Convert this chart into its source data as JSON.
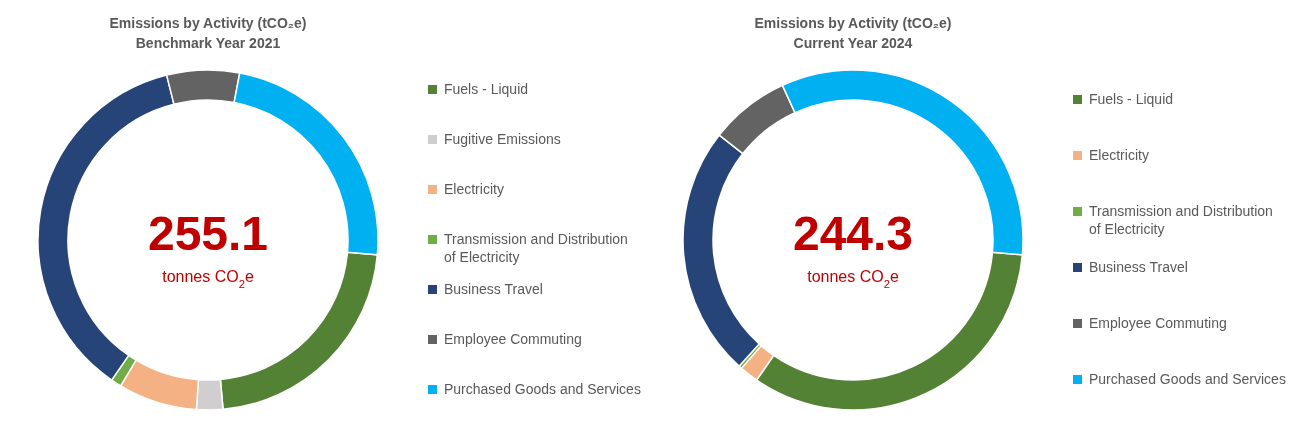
{
  "chart_data": [
    {
      "type": "donut",
      "title": "Emissions by Activity (tCO₂e)",
      "subtitle": "Benchmark Year 2021",
      "categories": [
        "Fuels - Liquid",
        "Fugitive Emissions",
        "Electricity",
        "Transmission and Distribution of Electricity",
        "Business Travel",
        "Employee Commuting",
        "Purchased Goods and Services"
      ],
      "values": [
        22.2,
        2.5,
        7.5,
        1,
        36.5,
        6.9,
        23.4
      ],
      "colors": [
        "#548235",
        "#d0cece",
        "#f4b183",
        "#70ad47",
        "#264478",
        "#636363",
        "#00b0f0"
      ],
      "annotations": [
        "255.1",
        "tonnes CO$_{2}$e"
      ],
      "legend": "right"
    },
    {
      "type": "donut",
      "title": "Emissions by Activity (tCO₂e)",
      "subtitle": "Current Year 2024",
      "categories": [
        "Fuels - Liquid",
        "Electricity",
        "Transmission and Distribution of Electricity",
        "Business Travel",
        "Employee Commuting",
        "Purchased Goods and Services"
      ],
      "values": [
        33.2,
        1.8,
        0.3,
        23.9,
        7.6,
        33.2
      ],
      "colors": [
        "#548235",
        "#f4b183",
        "#70ad47",
        "#264478",
        "#636363",
        "#00b0f0"
      ],
      "annotations": [
        "244.3",
        "tonnes CO$_{2}$e"
      ],
      "legend": "right"
    }
  ]
}
